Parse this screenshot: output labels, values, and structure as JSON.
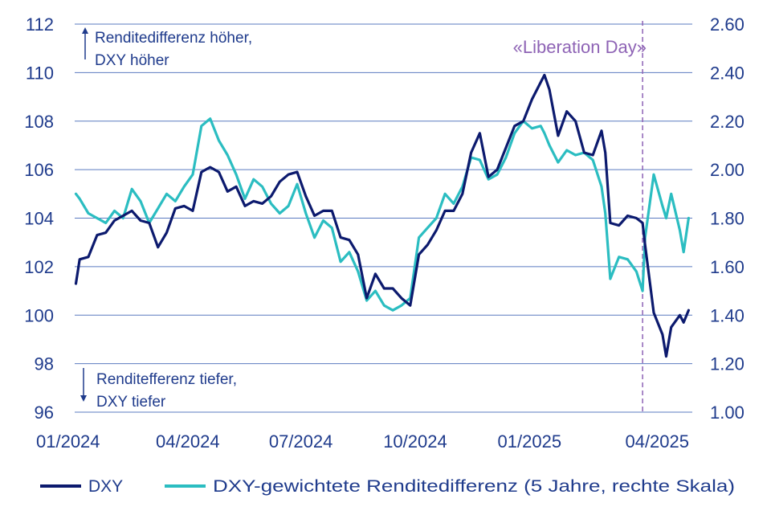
{
  "chart_data": {
    "type": "line",
    "x_ticks": [
      "01/2024",
      "04/2024",
      "07/2024",
      "10/2024",
      "01/2025",
      "04/2025"
    ],
    "y_left": {
      "min": 96,
      "max": 112,
      "ticks": [
        "96",
        "98",
        "100",
        "102",
        "104",
        "106",
        "108",
        "110",
        "112"
      ]
    },
    "y_right": {
      "min": 1.0,
      "max": 2.6,
      "ticks": [
        "1.00",
        "1.20",
        "1.40",
        "1.60",
        "1.80",
        "2.00",
        "2.20",
        "2.40",
        "2.60"
      ]
    },
    "grid": true,
    "legend_position": "bottom",
    "annotations": {
      "up": [
        "Renditedifferenz höher,",
        "DXY höher"
      ],
      "down": [
        "Renditefferenz tiefer,",
        "DXY tiefer"
      ],
      "event": {
        "label": "«Liberation Day»",
        "date": "2025-04-02"
      }
    },
    "series": [
      {
        "name": "DXY",
        "axis": "left",
        "color": "#0c1a6e",
        "points": [
          [
            "2024-01-02",
            101.3
          ],
          [
            "2024-01-05",
            102.3
          ],
          [
            "2024-01-12",
            102.4
          ],
          [
            "2024-01-19",
            103.3
          ],
          [
            "2024-01-26",
            103.4
          ],
          [
            "2024-02-02",
            103.9
          ],
          [
            "2024-02-09",
            104.1
          ],
          [
            "2024-02-16",
            104.3
          ],
          [
            "2024-02-23",
            103.9
          ],
          [
            "2024-03-01",
            103.8
          ],
          [
            "2024-03-08",
            102.8
          ],
          [
            "2024-03-15",
            103.4
          ],
          [
            "2024-03-22",
            104.4
          ],
          [
            "2024-03-29",
            104.5
          ],
          [
            "2024-04-05",
            104.3
          ],
          [
            "2024-04-12",
            105.9
          ],
          [
            "2024-04-19",
            106.1
          ],
          [
            "2024-04-26",
            105.9
          ],
          [
            "2024-05-03",
            105.1
          ],
          [
            "2024-05-10",
            105.3
          ],
          [
            "2024-05-17",
            104.5
          ],
          [
            "2024-05-24",
            104.7
          ],
          [
            "2024-05-31",
            104.6
          ],
          [
            "2024-06-07",
            104.9
          ],
          [
            "2024-06-14",
            105.5
          ],
          [
            "2024-06-21",
            105.8
          ],
          [
            "2024-06-28",
            105.9
          ],
          [
            "2024-07-05",
            104.9
          ],
          [
            "2024-07-12",
            104.1
          ],
          [
            "2024-07-19",
            104.3
          ],
          [
            "2024-07-26",
            104.3
          ],
          [
            "2024-08-02",
            103.2
          ],
          [
            "2024-08-09",
            103.1
          ],
          [
            "2024-08-16",
            102.5
          ],
          [
            "2024-08-23",
            100.7
          ],
          [
            "2024-08-30",
            101.7
          ],
          [
            "2024-09-06",
            101.1
          ],
          [
            "2024-09-13",
            101.1
          ],
          [
            "2024-09-20",
            100.7
          ],
          [
            "2024-09-27",
            100.4
          ],
          [
            "2024-10-04",
            102.5
          ],
          [
            "2024-10-11",
            102.9
          ],
          [
            "2024-10-18",
            103.5
          ],
          [
            "2024-10-25",
            104.3
          ],
          [
            "2024-11-01",
            104.3
          ],
          [
            "2024-11-08",
            105.0
          ],
          [
            "2024-11-15",
            106.7
          ],
          [
            "2024-11-22",
            107.5
          ],
          [
            "2024-11-29",
            105.7
          ],
          [
            "2024-12-06",
            106.0
          ],
          [
            "2024-12-13",
            106.9
          ],
          [
            "2024-12-20",
            107.8
          ],
          [
            "2024-12-27",
            108.0
          ],
          [
            "2025-01-03",
            108.9
          ],
          [
            "2025-01-10",
            109.6
          ],
          [
            "2025-01-13",
            109.9
          ],
          [
            "2025-01-17",
            109.3
          ],
          [
            "2025-01-24",
            107.4
          ],
          [
            "2025-01-31",
            108.4
          ],
          [
            "2025-02-07",
            108.0
          ],
          [
            "2025-02-14",
            106.7
          ],
          [
            "2025-02-21",
            106.6
          ],
          [
            "2025-02-28",
            107.6
          ],
          [
            "2025-03-03",
            106.7
          ],
          [
            "2025-03-07",
            103.8
          ],
          [
            "2025-03-14",
            103.7
          ],
          [
            "2025-03-21",
            104.1
          ],
          [
            "2025-03-28",
            104.0
          ],
          [
            "2025-04-02",
            103.8
          ],
          [
            "2025-04-04",
            102.9
          ],
          [
            "2025-04-11",
            100.1
          ],
          [
            "2025-04-18",
            99.2
          ],
          [
            "2025-04-21",
            98.3
          ],
          [
            "2025-04-25",
            99.5
          ],
          [
            "2025-05-02",
            100.0
          ],
          [
            "2025-05-05",
            99.7
          ],
          [
            "2025-05-09",
            100.2
          ]
        ]
      },
      {
        "name": "DXY-gewichtete Renditedifferenz (5 Jahre, rechte Skala)",
        "axis": "right",
        "color": "#2bbdc1",
        "points": [
          [
            "2024-01-02",
            1.9
          ],
          [
            "2024-01-05",
            1.88
          ],
          [
            "2024-01-12",
            1.82
          ],
          [
            "2024-01-19",
            1.8
          ],
          [
            "2024-01-26",
            1.78
          ],
          [
            "2024-02-02",
            1.83
          ],
          [
            "2024-02-09",
            1.8
          ],
          [
            "2024-02-16",
            1.92
          ],
          [
            "2024-02-23",
            1.87
          ],
          [
            "2024-03-01",
            1.78
          ],
          [
            "2024-03-08",
            1.84
          ],
          [
            "2024-03-15",
            1.9
          ],
          [
            "2024-03-22",
            1.87
          ],
          [
            "2024-03-29",
            1.93
          ],
          [
            "2024-04-05",
            1.98
          ],
          [
            "2024-04-12",
            2.18
          ],
          [
            "2024-04-19",
            2.21
          ],
          [
            "2024-04-26",
            2.12
          ],
          [
            "2024-05-03",
            2.06
          ],
          [
            "2024-05-10",
            1.98
          ],
          [
            "2024-05-17",
            1.88
          ],
          [
            "2024-05-24",
            1.96
          ],
          [
            "2024-05-31",
            1.93
          ],
          [
            "2024-06-07",
            1.86
          ],
          [
            "2024-06-14",
            1.82
          ],
          [
            "2024-06-21",
            1.85
          ],
          [
            "2024-06-28",
            1.94
          ],
          [
            "2024-07-05",
            1.82
          ],
          [
            "2024-07-12",
            1.72
          ],
          [
            "2024-07-19",
            1.79
          ],
          [
            "2024-07-26",
            1.76
          ],
          [
            "2024-08-02",
            1.62
          ],
          [
            "2024-08-09",
            1.66
          ],
          [
            "2024-08-16",
            1.58
          ],
          [
            "2024-08-23",
            1.46
          ],
          [
            "2024-08-30",
            1.5
          ],
          [
            "2024-09-06",
            1.44
          ],
          [
            "2024-09-13",
            1.42
          ],
          [
            "2024-09-20",
            1.44
          ],
          [
            "2024-09-27",
            1.47
          ],
          [
            "2024-10-04",
            1.72
          ],
          [
            "2024-10-11",
            1.76
          ],
          [
            "2024-10-18",
            1.8
          ],
          [
            "2024-10-25",
            1.9
          ],
          [
            "2024-11-01",
            1.86
          ],
          [
            "2024-11-08",
            1.93
          ],
          [
            "2024-11-15",
            2.05
          ],
          [
            "2024-11-22",
            2.04
          ],
          [
            "2024-11-29",
            1.96
          ],
          [
            "2024-12-06",
            1.98
          ],
          [
            "2024-12-13",
            2.05
          ],
          [
            "2024-12-20",
            2.15
          ],
          [
            "2024-12-27",
            2.2
          ],
          [
            "2025-01-03",
            2.17
          ],
          [
            "2025-01-10",
            2.18
          ],
          [
            "2025-01-13",
            2.15
          ],
          [
            "2025-01-17",
            2.1
          ],
          [
            "2025-01-24",
            2.03
          ],
          [
            "2025-01-31",
            2.08
          ],
          [
            "2025-02-07",
            2.06
          ],
          [
            "2025-02-14",
            2.07
          ],
          [
            "2025-02-21",
            2.04
          ],
          [
            "2025-02-28",
            1.93
          ],
          [
            "2025-03-03",
            1.82
          ],
          [
            "2025-03-07",
            1.55
          ],
          [
            "2025-03-14",
            1.64
          ],
          [
            "2025-03-21",
            1.63
          ],
          [
            "2025-03-28",
            1.58
          ],
          [
            "2025-04-02",
            1.5
          ],
          [
            "2025-04-04",
            1.72
          ],
          [
            "2025-04-11",
            1.98
          ],
          [
            "2025-04-18",
            1.85
          ],
          [
            "2025-04-21",
            1.8
          ],
          [
            "2025-04-25",
            1.9
          ],
          [
            "2025-05-02",
            1.75
          ],
          [
            "2025-05-05",
            1.66
          ],
          [
            "2025-05-09",
            1.8
          ]
        ]
      }
    ]
  }
}
